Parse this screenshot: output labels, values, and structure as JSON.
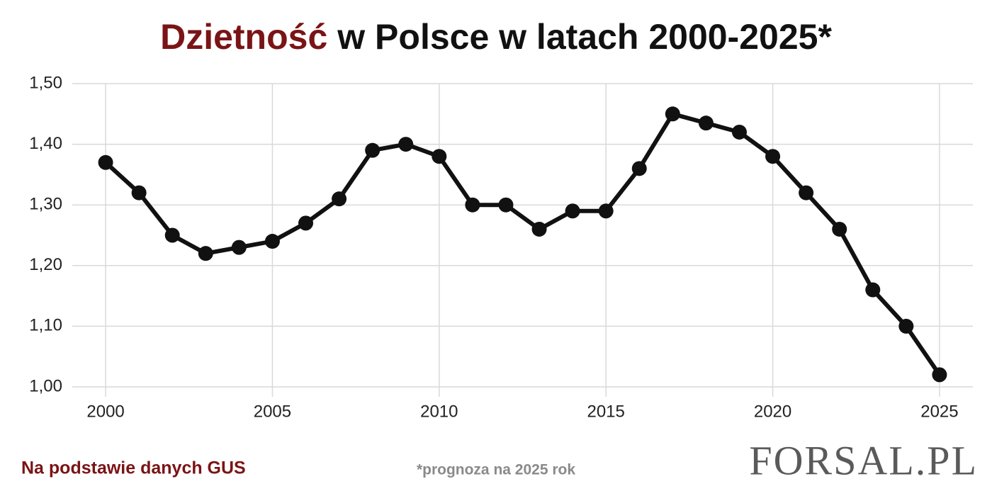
{
  "chart_data": {
    "type": "line",
    "title": {
      "highlight": "Dzietność",
      "text": "w Polsce w latach 2000-2025*"
    },
    "x": [
      2000,
      2001,
      2002,
      2003,
      2004,
      2005,
      2006,
      2007,
      2008,
      2009,
      2010,
      2011,
      2012,
      2013,
      2014,
      2015,
      2016,
      2017,
      2018,
      2019,
      2020,
      2021,
      2022,
      2023,
      2024,
      2025
    ],
    "values": [
      1.37,
      1.32,
      1.25,
      1.22,
      1.23,
      1.24,
      1.27,
      1.31,
      1.39,
      1.4,
      1.38,
      1.3,
      1.3,
      1.26,
      1.29,
      1.29,
      1.36,
      1.45,
      1.435,
      1.42,
      1.38,
      1.32,
      1.26,
      1.16,
      1.1,
      1.02
    ],
    "color": "#111111",
    "xlim": [
      1999,
      2026
    ],
    "xticks": [
      2000,
      2005,
      2010,
      2015,
      2020,
      2025
    ],
    "ylim": [
      1.0,
      1.5
    ],
    "yticks": [
      {
        "value": 1.0,
        "label": "1,00"
      },
      {
        "value": 1.1,
        "label": "1,10"
      },
      {
        "value": 1.2,
        "label": "1,20"
      },
      {
        "value": 1.3,
        "label": "1,30"
      },
      {
        "value": 1.4,
        "label": "1,40"
      },
      {
        "value": 1.5,
        "label": "1,50"
      }
    ],
    "grid": true,
    "source": "Na podstawie danych GUS",
    "note": "*prognoza na 2025 rok",
    "logo": "FORSAL.PL"
  }
}
